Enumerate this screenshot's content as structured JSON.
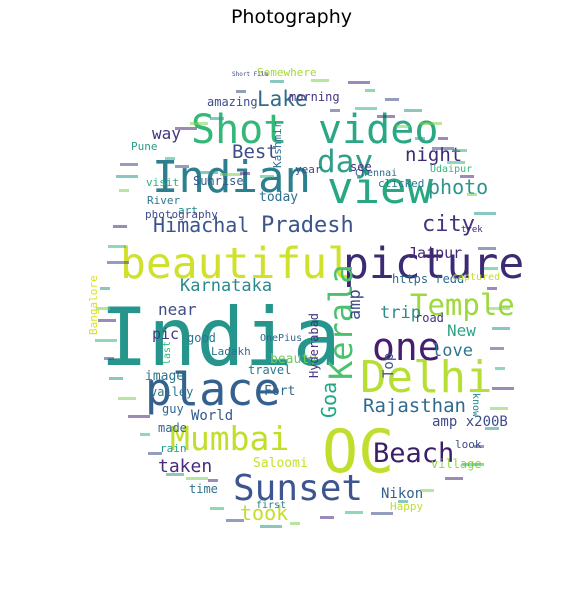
{
  "title": "Photography",
  "words": [
    {
      "text": "India",
      "color": "#26968c"
    },
    {
      "text": "OC",
      "color": "#c0de2c"
    },
    {
      "text": "beautiful",
      "color": "#cfe12a"
    },
    {
      "text": "picture",
      "color": "#3b2a74"
    },
    {
      "text": "Indian",
      "color": "#2c7f8e"
    },
    {
      "text": "view",
      "color": "#27a883"
    },
    {
      "text": "place",
      "color": "#34618d"
    },
    {
      "text": "Delhi",
      "color": "#b7de34"
    },
    {
      "text": "Shot",
      "color": "#35b779"
    },
    {
      "text": "video",
      "color": "#2aa784"
    },
    {
      "text": "Sunset",
      "color": "#3e5590"
    },
    {
      "text": "Mumbai",
      "color": "#c1df2a"
    },
    {
      "text": "one",
      "color": "#481c6e"
    },
    {
      "text": "Kerala",
      "color": "#4ac16d"
    },
    {
      "text": "Temple",
      "color": "#9cd93b"
    },
    {
      "text": "day",
      "color": "#2e9f88"
    },
    {
      "text": "Himachal",
      "color": "#3b548c"
    },
    {
      "text": "Pradesh",
      "color": "#3b548c"
    },
    {
      "text": "Beach",
      "color": "#3a1f66"
    },
    {
      "text": "city",
      "color": "#46327e"
    },
    {
      "text": "Karnataka",
      "color": "#2a8a8b"
    },
    {
      "text": "Rajasthan",
      "color": "#2f6a8e"
    },
    {
      "text": "took",
      "color": "#c4de2a"
    },
    {
      "text": "taken",
      "color": "#472d7b"
    },
    {
      "text": "Goa",
      "color": "#22a785"
    },
    {
      "text": "Lake",
      "color": "#2f6c8e"
    },
    {
      "text": "Best",
      "color": "#3d4e8a"
    },
    {
      "text": "night",
      "color": "#3b2a74"
    },
    {
      "text": "photo",
      "color": "#2e948c"
    },
    {
      "text": "amp",
      "color": "#3c4d8a"
    },
    {
      "text": "trip",
      "color": "#2c8b8c"
    },
    {
      "text": "near",
      "color": "#3d4d8a"
    },
    {
      "text": "way",
      "color": "#40337d"
    },
    {
      "text": "Jaipur",
      "color": "#482878"
    },
    {
      "text": "New",
      "color": "#30a486"
    },
    {
      "text": "love",
      "color": "#2d758e"
    },
    {
      "text": "Top",
      "color": "#3a548c"
    },
    {
      "text": "Nikon",
      "color": "#34618d"
    },
    {
      "text": "amp x200B",
      "color": "#3e4c8a"
    },
    {
      "text": "Saloomi",
      "color": "#c5e22a"
    },
    {
      "text": "Fort",
      "color": "#31688e"
    },
    {
      "text": "World",
      "color": "#37598c"
    },
    {
      "text": "made",
      "color": "#33648d"
    },
    {
      "text": "time",
      "color": "#2d718e"
    },
    {
      "text": "rain",
      "color": "#1fa188"
    },
    {
      "text": "guy",
      "color": "#31668e"
    },
    {
      "text": "valley",
      "color": "#2b758e"
    },
    {
      "text": "image",
      "color": "#2b748e"
    },
    {
      "text": "beauty",
      "color": "#6dcd59"
    },
    {
      "text": "pic",
      "color": "#453781"
    },
    {
      "text": "good",
      "color": "#2a778e"
    },
    {
      "text": "travel",
      "color": "#2a788e"
    },
    {
      "text": "Ladakh",
      "color": "#2d708e"
    },
    {
      "text": "Hyderabad",
      "color": "#463480"
    },
    {
      "text": "today",
      "color": "#2e6e8e"
    },
    {
      "text": "art",
      "color": "#228c8d"
    },
    {
      "text": "River",
      "color": "#2a798e"
    },
    {
      "text": "photography",
      "color": "#3e4c8a"
    },
    {
      "text": "Sunrise",
      "color": "#38598c"
    },
    {
      "text": "visit",
      "color": "#2ab07f"
    },
    {
      "text": "Pune",
      "color": "#2a9b8a"
    },
    {
      "text": "amazing",
      "color": "#3d4d8a"
    },
    {
      "text": "morning",
      "color": "#453581"
    },
    {
      "text": "Somewhere",
      "color": "#a3da37"
    },
    {
      "text": "Chennai",
      "color": "#2f6b8e"
    },
    {
      "text": "clicked",
      "color": "#2a788e"
    },
    {
      "text": "Udaipur",
      "color": "#35b779"
    },
    {
      "text": "see",
      "color": "#472f7d"
    },
    {
      "text": "year",
      "color": "#3e4989"
    },
    {
      "text": "Kashmir",
      "color": "#2e6f8e"
    },
    {
      "text": "https redd",
      "color": "#2f6b8e"
    },
    {
      "text": "captured",
      "color": "#c8e020"
    },
    {
      "text": "road",
      "color": "#46307e"
    },
    {
      "text": "Happy",
      "color": "#bfe02b"
    },
    {
      "text": "village",
      "color": "#8fd744"
    },
    {
      "text": "look",
      "color": "#3e4b89"
    },
    {
      "text": "first",
      "color": "#2a7a8e"
    },
    {
      "text": "OnePius",
      "color": "#31678e"
    },
    {
      "text": "Bangalore",
      "color": "#d8e219"
    },
    {
      "text": "trek",
      "color": "#482475"
    },
    {
      "text": "last",
      "color": "#35b779"
    },
    {
      "text": "know",
      "color": "#24878e"
    },
    {
      "text": "Short Film",
      "color": "#3e4c8a"
    }
  ]
}
